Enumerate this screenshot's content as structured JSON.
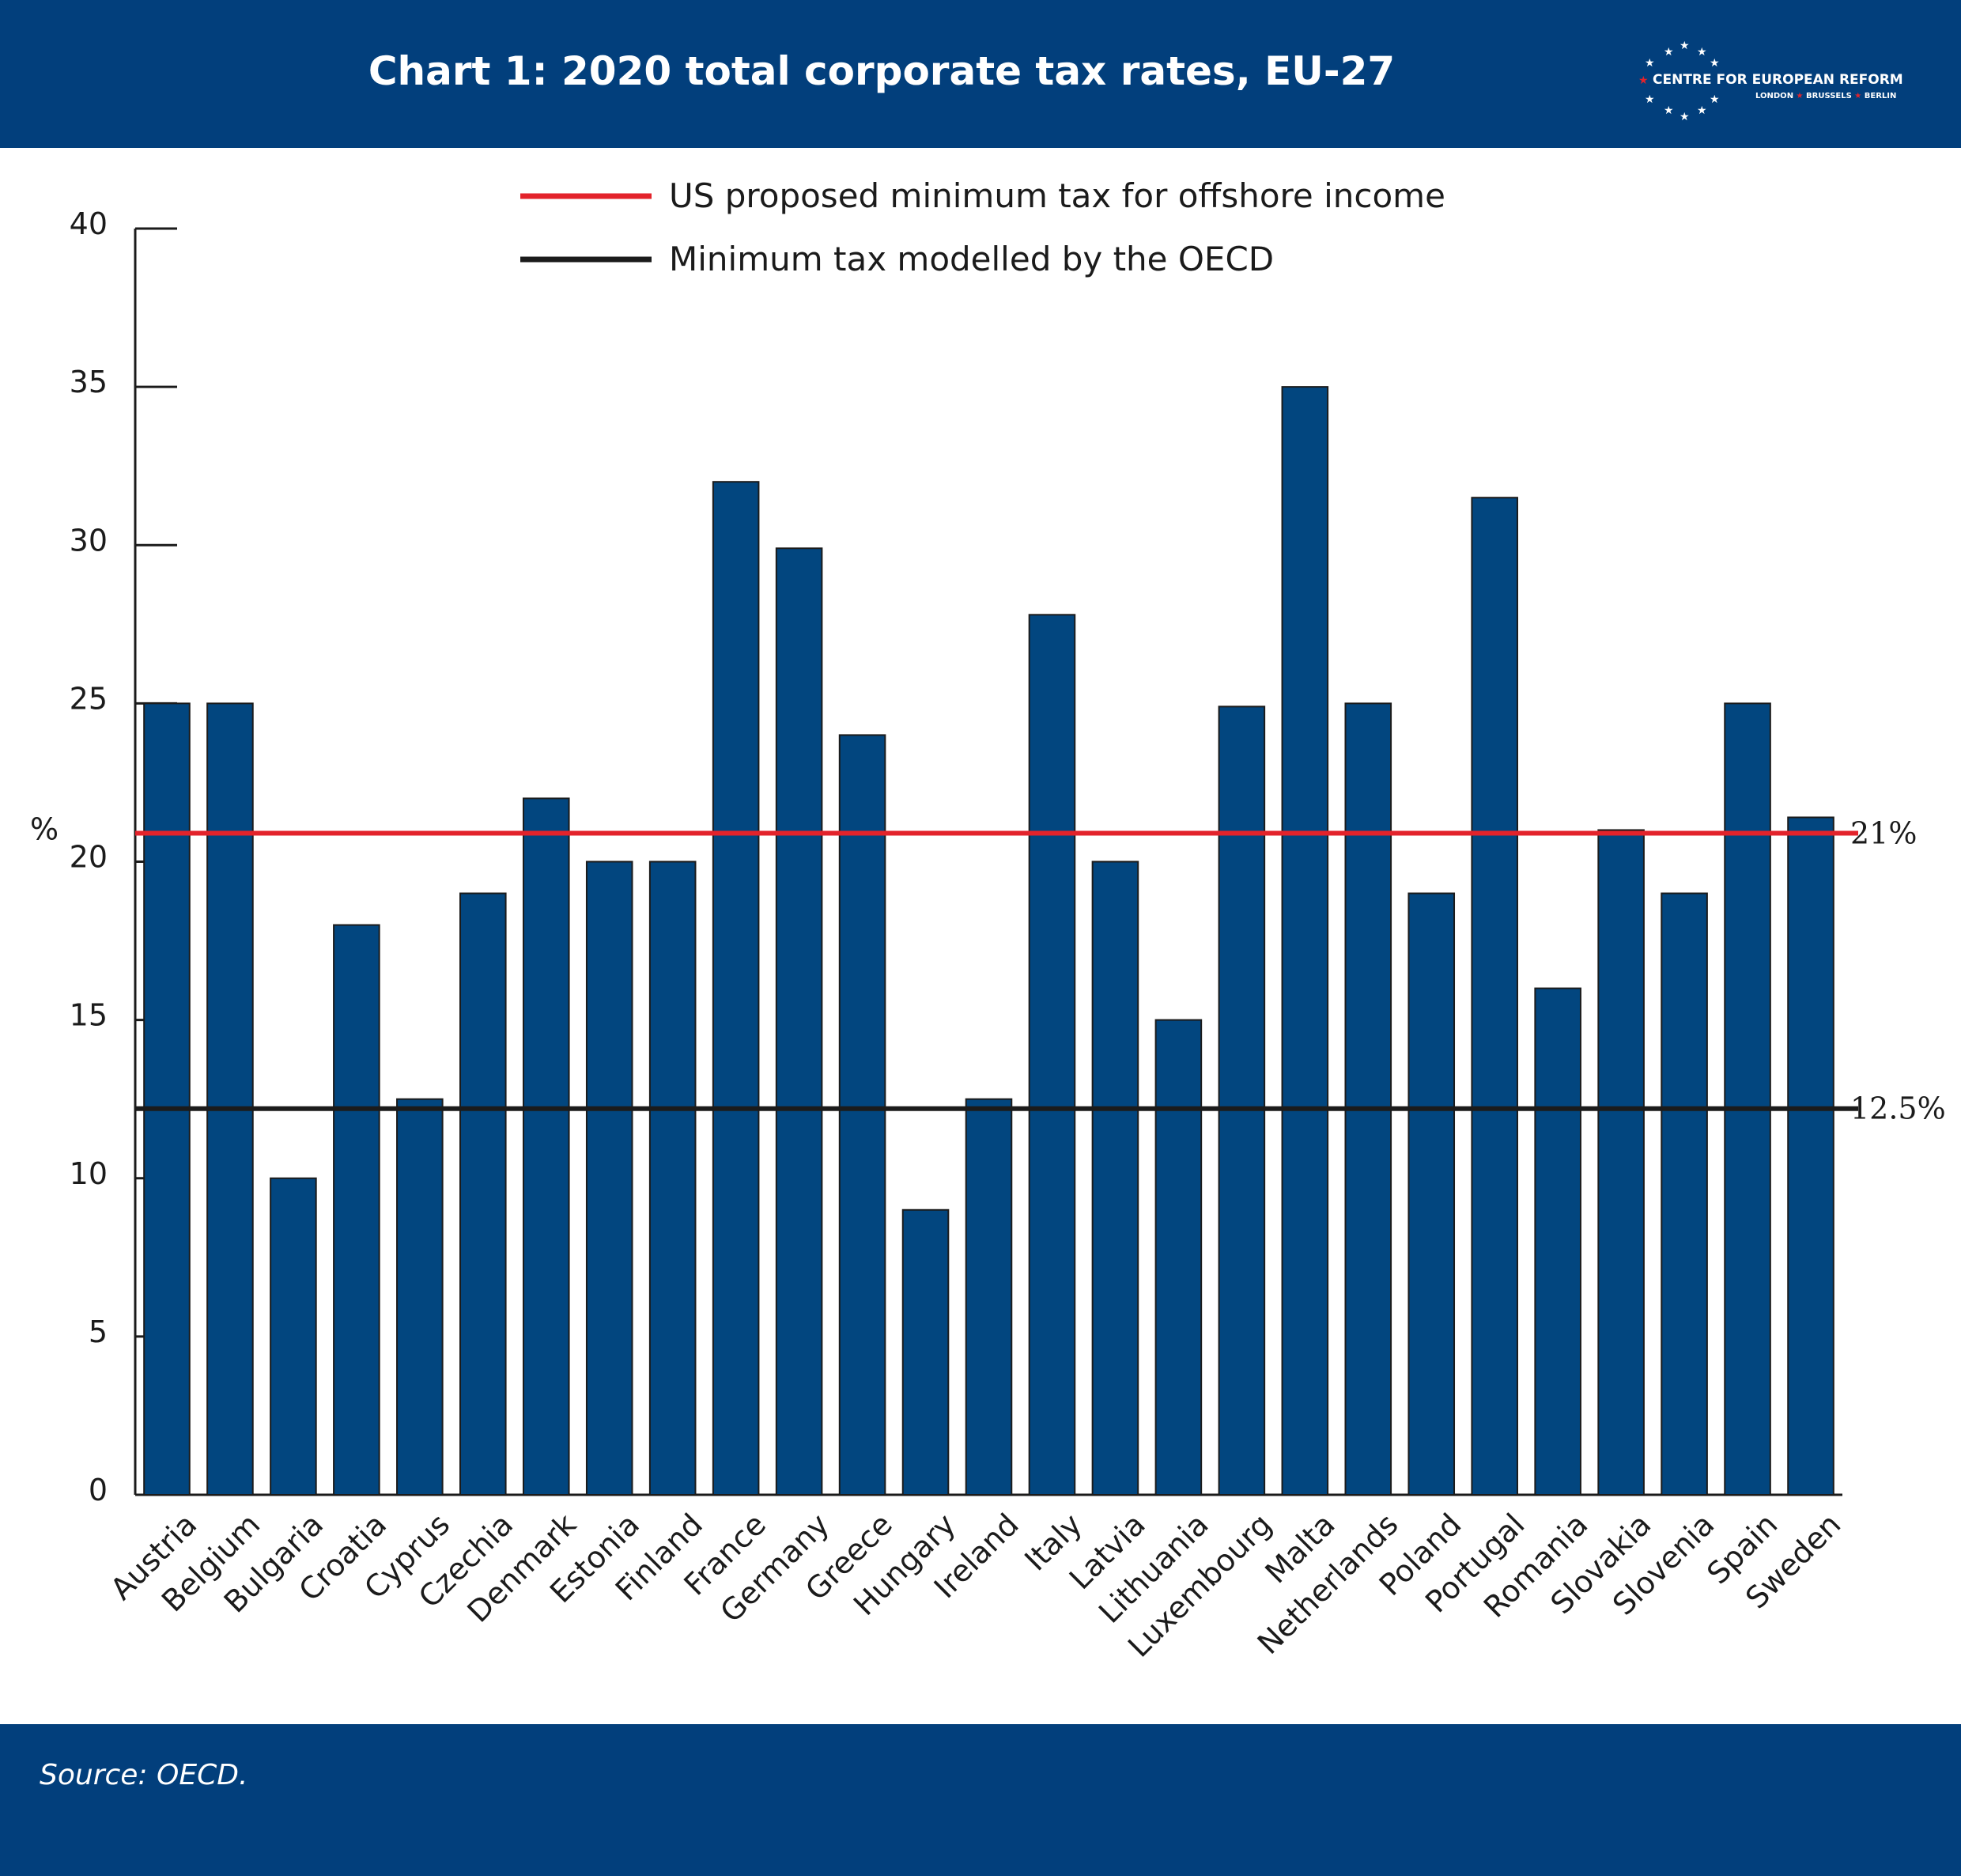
{
  "header": {
    "title": "Chart 1: 2020 total corporate tax rates, EU-27",
    "logo": {
      "name": "CENTRE FOR EUROPEAN REFORM",
      "cities": [
        "LONDON",
        "BRUSSELS",
        "BERLIN"
      ]
    }
  },
  "footer": {
    "source": "Source: OECD."
  },
  "colors": {
    "header_background": "#023f7c",
    "bar_fill": "#02467f",
    "us_line": "#e3232b",
    "oecd_line": "#1b1b1b",
    "logo_star_red": "#e3232b"
  },
  "chart_data": {
    "type": "bar",
    "ylabel": "%",
    "xlabel": "",
    "ylim": [
      0,
      40
    ],
    "yticks": [
      0,
      5,
      10,
      15,
      20,
      25,
      30,
      35,
      40
    ],
    "grid": false,
    "legend_placement": "top-center",
    "categories": [
      "Austria",
      "Belgium",
      "Bulgaria",
      "Croatia",
      "Cyprus",
      "Czechia",
      "Denmark",
      "Estonia",
      "Finland",
      "France",
      "Germany",
      "Greece",
      "Hungary",
      "Ireland",
      "Italy",
      "Latvia",
      "Lithuania",
      "Luxembourg",
      "Malta",
      "Netherlands",
      "Poland",
      "Portugal",
      "Romania",
      "Slovakia",
      "Slovenia",
      "Spain",
      "Sweden"
    ],
    "values": [
      25,
      25,
      10,
      18,
      12.5,
      19,
      22,
      20,
      20,
      32,
      29.9,
      24,
      9,
      12.5,
      27.8,
      20,
      15,
      24.9,
      35,
      25,
      19,
      31.5,
      16,
      21,
      19,
      25,
      21.4
    ],
    "reference_lines": [
      {
        "name": "US proposed minimum tax for offshore income",
        "value": 21,
        "label": "21%"
      },
      {
        "name": "Minimum tax modelled by the OECD",
        "value": 12.5,
        "label": "12.5%"
      }
    ]
  }
}
